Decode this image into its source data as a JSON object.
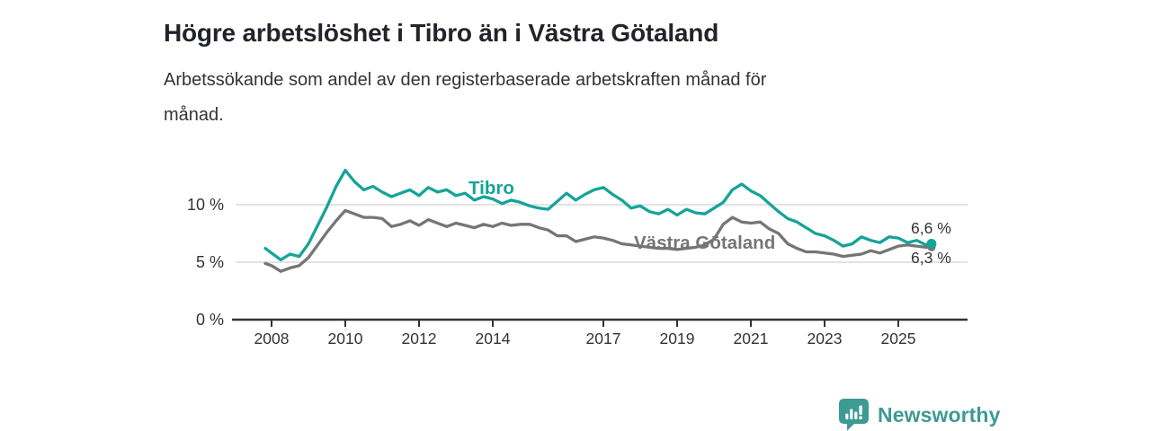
{
  "header": {
    "title": "Högre arbetslöshet i Tibro än i Västra Götaland",
    "subtitle": "Arbetssökande som andel av den registerbaserade arbetskraften månad för\nmånad."
  },
  "branding": {
    "name": "Newsworthy",
    "icon": "bar-chart-speech-bubble",
    "color": "#3e9a94"
  },
  "colors": {
    "tibro_line": "#16a398",
    "vg_line": "#757575",
    "grid": "#dadada",
    "axis": "#333333",
    "tick_label": "#333333",
    "end_label": "#333333"
  },
  "chart_data": {
    "type": "line",
    "title": "Högre arbetslöshet i Tibro än i Västra Götaland",
    "xlabel": "",
    "ylabel": "",
    "unit": "%",
    "grid": true,
    "legend_position": "inline-labels",
    "xlim": [
      2006.9,
      2026.9
    ],
    "ylim": [
      0,
      14.8
    ],
    "x_ticks": [
      {
        "value": 2008,
        "label": "2008"
      },
      {
        "value": 2010,
        "label": "2010"
      },
      {
        "value": 2012,
        "label": "2012"
      },
      {
        "value": 2014,
        "label": "2014"
      },
      {
        "value": 2017,
        "label": "2017"
      },
      {
        "value": 2019,
        "label": "2019"
      },
      {
        "value": 2021,
        "label": "2021"
      },
      {
        "value": 2023,
        "label": "2023"
      },
      {
        "value": 2025,
        "label": "2025"
      }
    ],
    "y_ticks": [
      {
        "value": 0,
        "label": "0 %"
      },
      {
        "value": 5,
        "label": "5 %"
      },
      {
        "value": 10,
        "label": "10 %"
      }
    ],
    "x": [
      2007.83,
      2008.0,
      2008.25,
      2008.5,
      2008.75,
      2009.0,
      2009.25,
      2009.5,
      2009.75,
      2010.0,
      2010.25,
      2010.5,
      2010.75,
      2011.0,
      2011.25,
      2011.5,
      2011.75,
      2012.0,
      2012.25,
      2012.5,
      2012.75,
      2013.0,
      2013.25,
      2013.5,
      2013.75,
      2014.0,
      2014.25,
      2014.5,
      2014.75,
      2015.0,
      2015.25,
      2015.5,
      2015.75,
      2016.0,
      2016.25,
      2016.5,
      2016.75,
      2017.0,
      2017.25,
      2017.5,
      2017.75,
      2018.0,
      2018.25,
      2018.5,
      2018.75,
      2019.0,
      2019.25,
      2019.5,
      2019.75,
      2020.0,
      2020.25,
      2020.5,
      2020.75,
      2021.0,
      2021.25,
      2021.5,
      2021.75,
      2022.0,
      2022.25,
      2022.5,
      2022.75,
      2023.0,
      2023.25,
      2023.5,
      2023.75,
      2024.0,
      2024.25,
      2024.5,
      2024.75,
      2025.0,
      2025.25,
      2025.5,
      2025.75,
      2025.9
    ],
    "series": [
      {
        "name": "Tibro",
        "color": "#16a398",
        "end_label": "6,6 %",
        "end_value": 6.6,
        "values": [
          6.2,
          5.8,
          5.2,
          5.7,
          5.5,
          6.6,
          8.2,
          9.8,
          11.6,
          13.0,
          12.0,
          11.3,
          11.6,
          11.1,
          10.7,
          11.0,
          11.3,
          10.8,
          11.5,
          11.1,
          11.3,
          10.8,
          11.0,
          10.4,
          10.7,
          10.5,
          10.1,
          10.4,
          10.2,
          9.9,
          9.7,
          9.6,
          10.3,
          11.0,
          10.4,
          10.9,
          11.3,
          11.5,
          10.9,
          10.4,
          9.7,
          9.9,
          9.4,
          9.2,
          9.6,
          9.1,
          9.6,
          9.3,
          9.2,
          9.7,
          10.2,
          11.3,
          11.8,
          11.2,
          10.8,
          10.1,
          9.4,
          8.8,
          8.5,
          8.0,
          7.5,
          7.3,
          6.9,
          6.4,
          6.6,
          7.2,
          6.9,
          6.7,
          7.2,
          7.1,
          6.7,
          6.9,
          6.5,
          6.6
        ]
      },
      {
        "name": "Västra Götaland",
        "color": "#757575",
        "end_label": "6,3 %",
        "end_value": 6.3,
        "values": [
          4.9,
          4.7,
          4.2,
          4.5,
          4.7,
          5.4,
          6.5,
          7.6,
          8.6,
          9.5,
          9.2,
          8.9,
          8.9,
          8.8,
          8.1,
          8.3,
          8.6,
          8.2,
          8.7,
          8.4,
          8.1,
          8.4,
          8.2,
          8.0,
          8.3,
          8.1,
          8.4,
          8.2,
          8.3,
          8.3,
          8.0,
          7.8,
          7.3,
          7.3,
          6.8,
          7.0,
          7.2,
          7.1,
          6.9,
          6.6,
          6.5,
          6.4,
          6.3,
          6.2,
          6.2,
          6.1,
          6.2,
          6.3,
          6.5,
          7.0,
          8.3,
          8.9,
          8.5,
          8.4,
          8.5,
          7.9,
          7.5,
          6.6,
          6.2,
          5.9,
          5.9,
          5.8,
          5.7,
          5.5,
          5.6,
          5.7,
          6.0,
          5.8,
          6.1,
          6.4,
          6.5,
          6.4,
          6.3,
          6.3
        ]
      }
    ]
  }
}
